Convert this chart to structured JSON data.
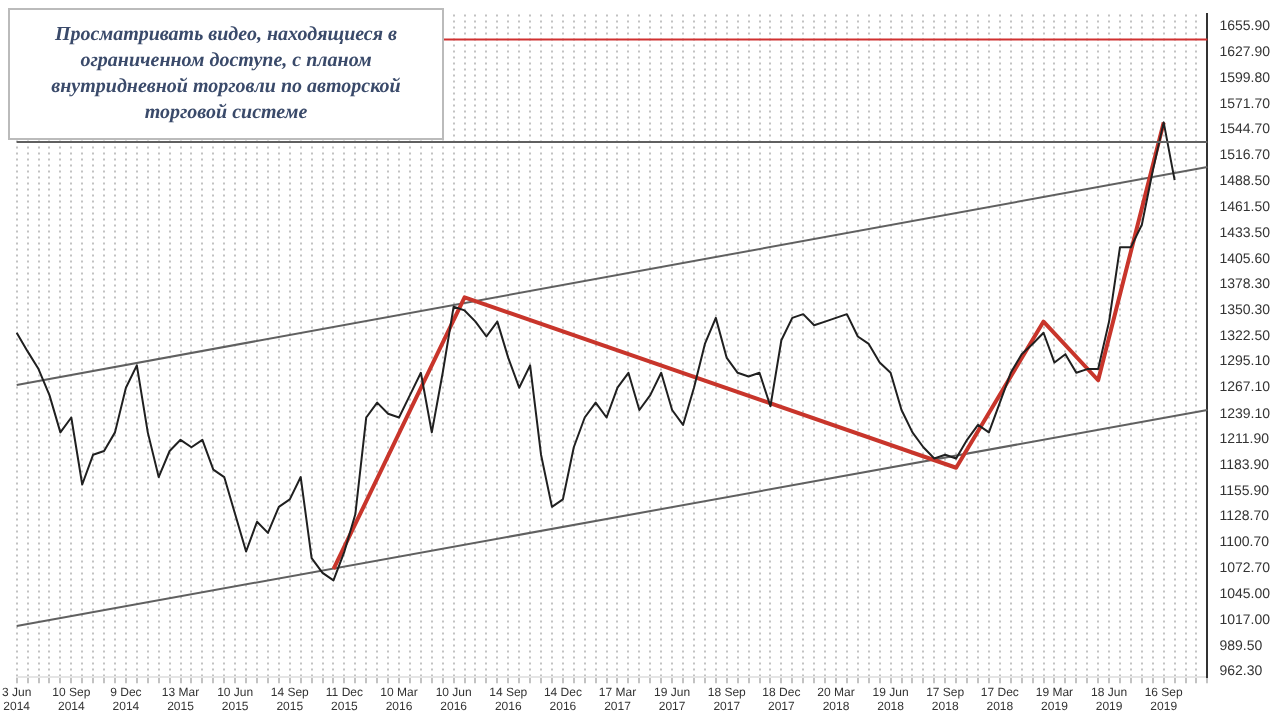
{
  "chart_data": {
    "type": "line",
    "annotations": [
      "Просматривать видео, находящиеся в ограниченном доступе, с планом внутридневной торговли по авторской торговой системе"
    ],
    "categories": [
      "3 Jun 2014",
      null,
      null,
      null,
      null,
      "10 Sep 2014",
      null,
      null,
      null,
      null,
      "9 Dec 2014",
      null,
      null,
      null,
      null,
      "13 Mar 2015",
      null,
      null,
      null,
      null,
      "10 Jun 2015",
      null,
      null,
      null,
      null,
      "14 Sep 2015",
      null,
      null,
      null,
      null,
      "11 Dec 2015",
      null,
      null,
      null,
      null,
      "10 Mar 2016",
      null,
      null,
      null,
      null,
      "10 Jun 2016",
      null,
      null,
      null,
      null,
      "14 Sep 2016",
      null,
      null,
      null,
      null,
      "14 Dec 2016",
      null,
      null,
      null,
      null,
      "17 Mar 2017",
      null,
      null,
      null,
      null,
      "19 Jun 2017",
      null,
      null,
      null,
      null,
      "18 Sep 2017",
      null,
      null,
      null,
      null,
      "18 Dec 2017",
      null,
      null,
      null,
      null,
      "20 Mar 2018",
      null,
      null,
      null,
      null,
      "19 Jun 2018",
      null,
      null,
      null,
      null,
      "17 Sep 2018",
      null,
      null,
      null,
      null,
      "17 Dec 2018",
      null,
      null,
      null,
      null,
      "19 Mar 2019",
      null,
      null,
      null,
      null,
      "18 Jun 2019",
      null,
      null,
      null,
      null,
      "16 Sep 2019",
      null,
      null,
      null,
      null
    ],
    "series": [
      {
        "color": "#202020",
        "values": [
          1326,
          1306,
          1287,
          1259,
          1219,
          1235,
          1163,
          1195,
          1199,
          1219,
          1267,
          1291,
          1219,
          1171,
          1199,
          1211,
          1203,
          1211,
          1179,
          1171,
          1131,
          1091,
          1123,
          1111,
          1139,
          1147,
          1171,
          1084,
          1068,
          1060,
          1091,
          1131,
          1235,
          1251,
          1239,
          1235,
          1259,
          1283,
          1219,
          1283,
          1354,
          1350,
          1338,
          1322,
          1338,
          1299,
          1267,
          1291,
          1195,
          1139,
          1147,
          1203,
          1235,
          1251,
          1235,
          1267,
          1283,
          1243,
          1259,
          1283,
          1243,
          1227,
          1267,
          1314,
          1342,
          1299,
          1283,
          1279,
          1283,
          1247,
          1318,
          1342,
          1346,
          1334,
          1338,
          1342,
          1346,
          1322,
          1314,
          1294,
          1283,
          1243,
          1219,
          1203,
          1191,
          1195,
          1191,
          1211,
          1227,
          1219,
          1251,
          1283,
          1303,
          1314,
          1326,
          1294,
          1303,
          1283,
          1287,
          1287,
          1338,
          1418,
          1418,
          1442,
          1500,
          1552,
          1490,
          null,
          null,
          null
        ]
      },
      {
        "color": "#c8352b",
        "values": [
          null,
          null,
          null,
          null,
          null,
          null,
          null,
          null,
          null,
          null,
          null,
          null,
          null,
          null,
          null,
          null,
          null,
          null,
          null,
          null,
          null,
          null,
          null,
          null,
          null,
          null,
          null,
          null,
          null,
          1072,
          null,
          null,
          null,
          null,
          null,
          null,
          null,
          null,
          null,
          null,
          null,
          1364,
          null,
          null,
          null,
          null,
          null,
          null,
          null,
          null,
          null,
          null,
          null,
          null,
          null,
          null,
          null,
          null,
          null,
          null,
          null,
          null,
          null,
          null,
          null,
          null,
          null,
          null,
          null,
          null,
          null,
          null,
          null,
          null,
          null,
          null,
          null,
          null,
          null,
          null,
          null,
          null,
          null,
          null,
          null,
          null,
          1181,
          null,
          null,
          null,
          null,
          null,
          null,
          null,
          1338,
          null,
          null,
          null,
          null,
          1275,
          null,
          null,
          null,
          null,
          null,
          1552,
          null,
          null,
          null,
          null
        ]
      },
      {
        "color": "#606060",
        "values": [
          1270,
          null,
          null,
          null,
          null,
          null,
          null,
          null,
          null,
          null,
          null,
          null,
          null,
          null,
          null,
          null,
          null,
          null,
          null,
          null,
          null,
          null,
          null,
          null,
          null,
          null,
          null,
          null,
          null,
          null,
          null,
          null,
          null,
          null,
          null,
          null,
          null,
          null,
          null,
          null,
          null,
          null,
          null,
          null,
          null,
          null,
          null,
          null,
          null,
          null,
          null,
          null,
          null,
          null,
          null,
          null,
          null,
          null,
          null,
          null,
          null,
          null,
          null,
          null,
          null,
          null,
          null,
          null,
          null,
          null,
          null,
          null,
          null,
          null,
          null,
          null,
          null,
          null,
          null,
          null,
          null,
          null,
          null,
          null,
          null,
          null,
          null,
          null,
          null,
          null,
          null,
          null,
          null,
          null,
          null,
          null,
          null,
          null,
          null,
          null,
          null,
          null,
          null,
          null,
          null,
          null,
          null,
          null,
          null,
          1504
        ]
      },
      {
        "color": "#606060",
        "values": [
          1011,
          null,
          null,
          null,
          null,
          null,
          null,
          null,
          null,
          null,
          null,
          null,
          null,
          null,
          null,
          null,
          null,
          null,
          null,
          null,
          null,
          null,
          null,
          null,
          null,
          null,
          null,
          null,
          null,
          null,
          null,
          null,
          null,
          null,
          null,
          null,
          null,
          null,
          null,
          null,
          null,
          null,
          null,
          null,
          null,
          null,
          null,
          null,
          null,
          null,
          null,
          null,
          null,
          null,
          null,
          null,
          null,
          null,
          null,
          null,
          null,
          null,
          null,
          null,
          null,
          null,
          null,
          null,
          null,
          null,
          null,
          null,
          null,
          null,
          null,
          null,
          null,
          null,
          null,
          null,
          null,
          null,
          null,
          null,
          null,
          null,
          null,
          null,
          null,
          null,
          null,
          null,
          null,
          null,
          null,
          null,
          null,
          null,
          null,
          null,
          null,
          null,
          null,
          null,
          null,
          null,
          null,
          null,
          null,
          1243
        ]
      }
    ],
    "ylim": [
      956,
      1668
    ],
    "yticks": [
      {
        "value": 1655.9,
        "label": "1655.90"
      },
      {
        "value": 1627.9,
        "label": "1627.90"
      },
      {
        "value": 1599.8,
        "label": "1599.80"
      },
      {
        "value": 1571.7,
        "label": "1571.70"
      },
      {
        "value": 1544.7,
        "label": "1544.70"
      },
      {
        "value": 1516.7,
        "label": "1516.70"
      },
      {
        "value": 1488.5,
        "label": "1488.50"
      },
      {
        "value": 1461.5,
        "label": "1461.50"
      },
      {
        "value": 1433.5,
        "label": "1433.50"
      },
      {
        "value": 1405.6,
        "label": "1405.60"
      },
      {
        "value": 1378.3,
        "label": "1378.30"
      },
      {
        "value": 1350.3,
        "label": "1350.30"
      },
      {
        "value": 1322.5,
        "label": "1322.50"
      },
      {
        "value": 1295.1,
        "label": "1295.10"
      },
      {
        "value": 1267.1,
        "label": "1267.10"
      },
      {
        "value": 1239.1,
        "label": "1239.10"
      },
      {
        "value": 1211.9,
        "label": "1211.90"
      },
      {
        "value": 1183.9,
        "label": "1183.90"
      },
      {
        "value": 1155.9,
        "label": "1155.90"
      },
      {
        "value": 1128.7,
        "label": "1128.70"
      },
      {
        "value": 1100.7,
        "label": "1100.70"
      },
      {
        "value": 1072.7,
        "label": "1072.70"
      },
      {
        "value": 1045,
        "label": "1045.00"
      },
      {
        "value": 1017,
        "label": "1017.00"
      },
      {
        "value": 989.5,
        "label": "989.50"
      },
      {
        "value": 962.3,
        "label": "962.30"
      }
    ],
    "ref_lines": [
      {
        "axis": "y",
        "value": 1641,
        "color": "#d03030"
      },
      {
        "axis": "y",
        "value": 1531,
        "color": "#606060"
      }
    ],
    "grid": "x",
    "legend": false,
    "marker": "none",
    "line_style": "solid"
  }
}
